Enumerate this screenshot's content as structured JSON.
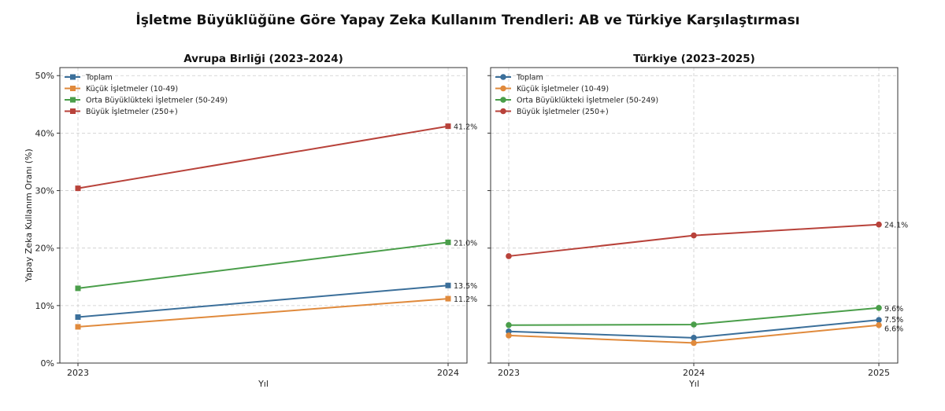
{
  "title": "İşletme Büyüklüğüne Göre Yapay Zeka Kullanım Trendleri: AB ve Türkiye Karşılaştırması",
  "chart_data": [
    {
      "type": "line",
      "title": "Avrupa Birliği (2023–2024)",
      "xlabel": "Yıl",
      "ylabel": "Yapay Zeka Kullanım Oranı (%)",
      "ylim": [
        0,
        51
      ],
      "yticks": [
        "0%",
        "10%",
        "20%",
        "30%",
        "40%",
        "50%"
      ],
      "grid": true,
      "legend_position": "upper left",
      "marker": "square",
      "x": [
        "2023",
        "2024"
      ],
      "series": [
        {
          "name": "Toplam",
          "color": "#3b6f9a",
          "values": [
            8.0,
            13.5
          ]
        },
        {
          "name": "Küçük İşletmeler (10-49)",
          "color": "#e08a3c",
          "values": [
            6.3,
            11.2
          ]
        },
        {
          "name": "Orta Büyüklükteki İşletmeler (50-249)",
          "color": "#4a9e4a",
          "values": [
            13.0,
            21.0
          ]
        },
        {
          "name": "Büyük İşletmeler (250+)",
          "color": "#b8423a",
          "values": [
            30.4,
            41.2
          ]
        }
      ],
      "annotations": [
        {
          "text": "41.2%",
          "x": "2024",
          "y": 41.2
        },
        {
          "text": "21.0%",
          "x": "2024",
          "y": 21.0
        },
        {
          "text": "13.5%",
          "x": "2024",
          "y": 13.5
        },
        {
          "text": "11.2%",
          "x": "2024",
          "y": 11.2
        }
      ]
    },
    {
      "type": "line",
      "title": "Türkiye (2023–2025)",
      "xlabel": "Yıl",
      "ylabel": "",
      "ylim": [
        0,
        51
      ],
      "grid": true,
      "legend_position": "upper left",
      "marker": "circle",
      "x": [
        "2023",
        "2024",
        "2025"
      ],
      "series": [
        {
          "name": "Toplam",
          "color": "#3b6f9a",
          "values": [
            5.5,
            4.4,
            7.5
          ]
        },
        {
          "name": "Küçük İşletmeler (10-49)",
          "color": "#e08a3c",
          "values": [
            4.8,
            3.5,
            6.6
          ]
        },
        {
          "name": "Orta Büyüklükteki İşletmeler (50-249)",
          "color": "#4a9e4a",
          "values": [
            6.6,
            6.7,
            9.6
          ]
        },
        {
          "name": "Büyük İşletmeler (250+)",
          "color": "#b8423a",
          "values": [
            18.6,
            22.2,
            24.1
          ]
        }
      ],
      "annotations": [
        {
          "text": "24.1%",
          "x": "2025",
          "y": 24.1
        },
        {
          "text": "9.6%",
          "x": "2025",
          "y": 9.6
        },
        {
          "text": "7.5%",
          "x": "2025",
          "y": 7.5
        },
        {
          "text": "6.6%",
          "x": "2025",
          "y": 6.6
        }
      ]
    }
  ]
}
